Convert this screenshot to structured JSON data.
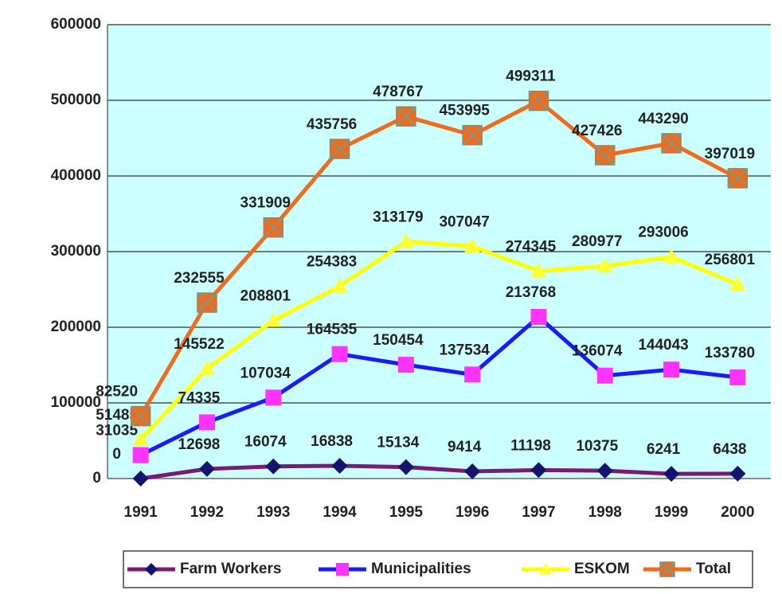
{
  "chart_data": {
    "type": "line",
    "categories": [
      "1991",
      "1992",
      "1993",
      "1994",
      "1995",
      "1996",
      "1997",
      "1998",
      "1999",
      "2000"
    ],
    "series": [
      {
        "name": "Farm Workers",
        "color": "#7a1a78",
        "marker_color": "#14146e",
        "marker": "diamond",
        "values": [
          0,
          12698,
          16074,
          16838,
          15134,
          9414,
          11198,
          10375,
          6241,
          6438
        ]
      },
      {
        "name": "Municipalities",
        "color": "#1a1aff",
        "marker_color": "#ff33ff",
        "marker": "square",
        "values": [
          31035,
          74335,
          107034,
          164535,
          150454,
          137534,
          213768,
          136074,
          144043,
          133780
        ]
      },
      {
        "name": "ESKOM",
        "color": "#ffff00",
        "marker_color": "#ffff33",
        "marker": "triangle",
        "values": [
          51485,
          145522,
          208801,
          254383,
          313179,
          307047,
          274345,
          280977,
          293006,
          256801
        ]
      },
      {
        "name": "Total",
        "color": "#f26b1d",
        "marker_color": "#f26b1d",
        "marker": "square-x",
        "values": [
          82520,
          232555,
          331909,
          435756,
          478767,
          453995,
          499311,
          427426,
          443290,
          397019
        ]
      }
    ],
    "ylim": [
      0,
      600000
    ],
    "yticks": [
      0,
      100000,
      200000,
      300000,
      400000,
      500000,
      600000
    ],
    "grid": true
  }
}
